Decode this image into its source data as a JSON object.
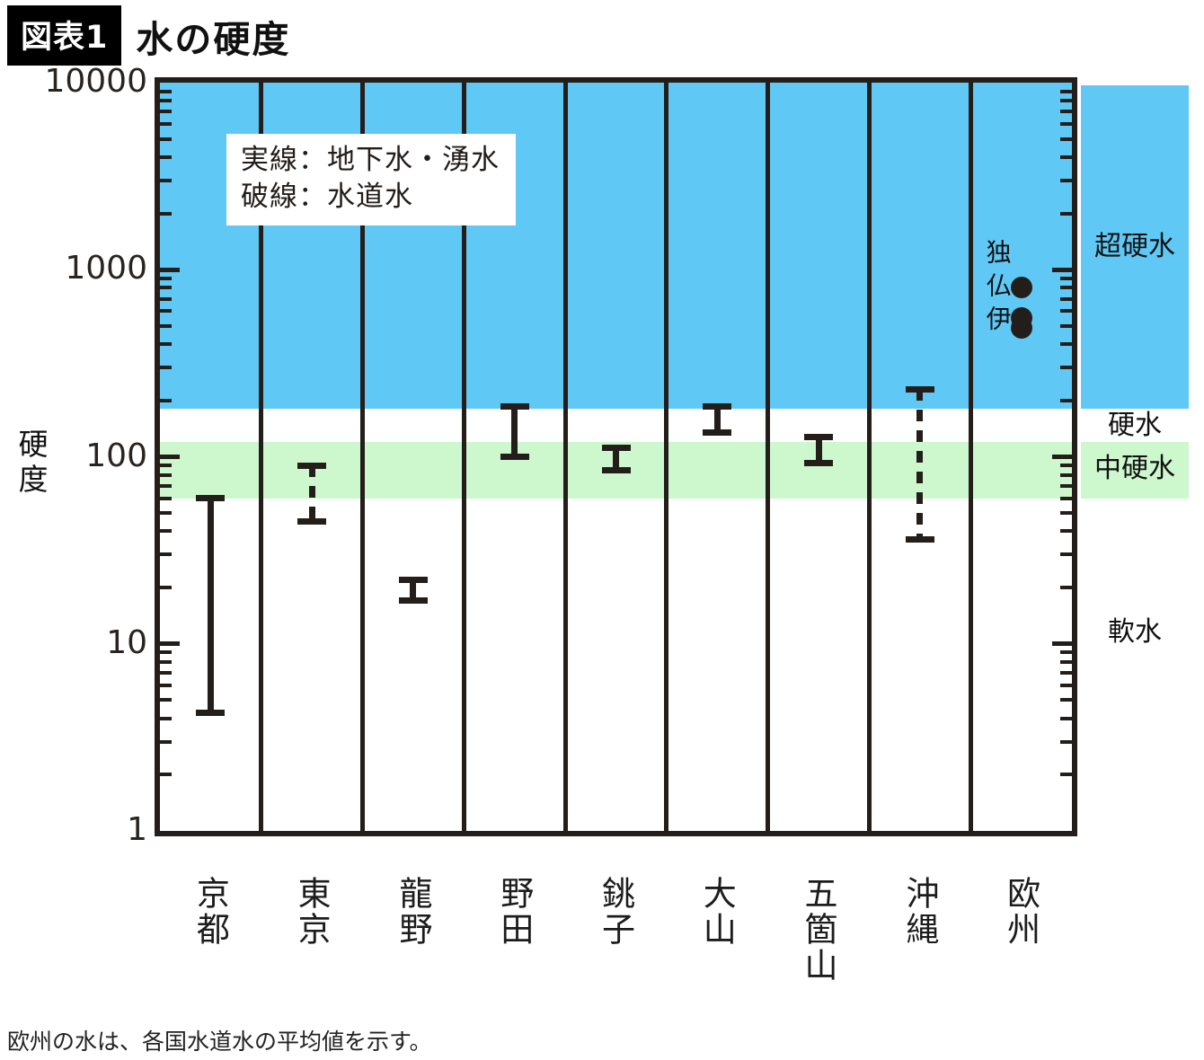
{
  "figure_tag": "図表1",
  "figure_title": "水の硬度",
  "legend": {
    "line1": "実線：地下水・湧水",
    "line2": "破線：水道水"
  },
  "footnote": "欧州の水は、各国水道水の平均値を示す。",
  "y_axis": {
    "label": "硬度",
    "tick_labels": [
      "10000",
      "1000",
      "100",
      "10",
      "1"
    ]
  },
  "colors": {
    "band_blue": "#60c8f5",
    "band_green": "#cdf7cd",
    "ink": "#241e1b"
  },
  "chart_data": {
    "type": "range-bar",
    "title": "水の硬度",
    "ylabel": "硬度",
    "yscale": "log",
    "ylim": [
      1,
      10000
    ],
    "legend": {
      "solid": "地下水・湧水",
      "dashed": "水道水"
    },
    "categories": [
      "京都",
      "東京",
      "龍野",
      "野田",
      "銚子",
      "大山",
      "五箇山",
      "沖縄",
      "欧州"
    ],
    "zones": [
      {
        "label": "超硬水",
        "min": 180,
        "max": 10000,
        "color": "#60c8f5"
      },
      {
        "label": "硬水",
        "min": 120,
        "max": 180,
        "color": "#ffffff"
      },
      {
        "label": "中硬水",
        "min": 60,
        "max": 120,
        "color": "#cdf7cd"
      },
      {
        "label": "軟水",
        "min": 1,
        "max": 60,
        "color": "#ffffff"
      }
    ],
    "series": [
      {
        "name": "京都",
        "min": 4.3,
        "max": 60,
        "line": "solid"
      },
      {
        "name": "東京",
        "min": 45,
        "max": 90,
        "line": "dashed"
      },
      {
        "name": "龍野",
        "min": 17,
        "max": 22,
        "line": "solid"
      },
      {
        "name": "野田",
        "min": 100,
        "max": 185,
        "line": "solid"
      },
      {
        "name": "銚子",
        "min": 85,
        "max": 112,
        "line": "solid"
      },
      {
        "name": "大山",
        "min": 135,
        "max": 185,
        "line": "solid"
      },
      {
        "name": "五箇山",
        "min": 93,
        "max": 128,
        "line": "solid"
      },
      {
        "name": "沖縄",
        "min": 36,
        "max": 230,
        "line": "dashed"
      }
    ],
    "points": {
      "category": "欧州",
      "label": "独仏伊",
      "items": [
        {
          "name": "独",
          "value": 800
        },
        {
          "name": "仏",
          "value": 550
        },
        {
          "name": "伊",
          "value": 490
        }
      ]
    }
  }
}
